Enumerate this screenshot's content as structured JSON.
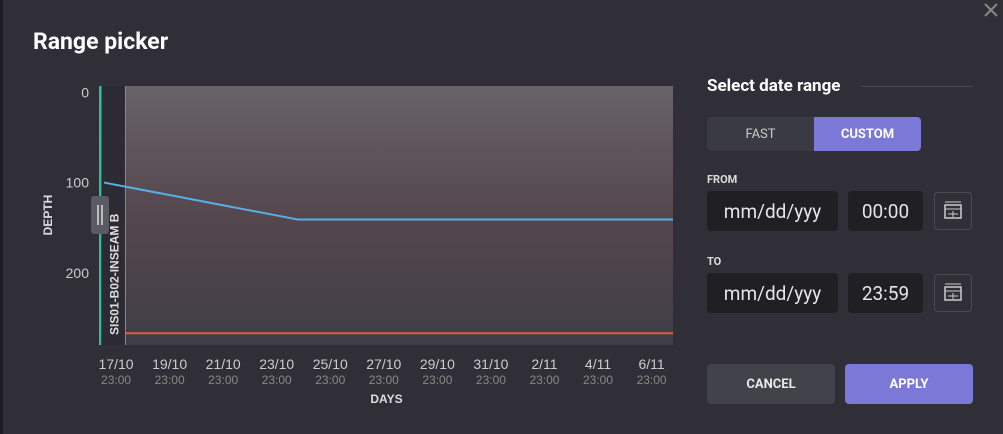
{
  "header": {
    "title": "Range picker"
  },
  "chart_data": {
    "type": "line",
    "y_label": "DEPTH",
    "x_label": "DAYS",
    "y_inverted": true,
    "ylim": [
      -7,
      280
    ],
    "yticks": [
      0,
      100,
      200
    ],
    "xlim": [
      -0.6,
      20.8
    ],
    "xticks": [
      {
        "value": 0,
        "label": "17/10",
        "sublabel": "23:00"
      },
      {
        "value": 2,
        "label": "19/10",
        "sublabel": "23:00"
      },
      {
        "value": 4,
        "label": "21/10",
        "sublabel": "23:00"
      },
      {
        "value": 6,
        "label": "23/10",
        "sublabel": "23:00"
      },
      {
        "value": 8,
        "label": "25/10",
        "sublabel": "23:00"
      },
      {
        "value": 10,
        "label": "27/10",
        "sublabel": "23:00"
      },
      {
        "value": 12,
        "label": "29/10",
        "sublabel": "23:00"
      },
      {
        "value": 14,
        "label": "31/10",
        "sublabel": "23:00"
      },
      {
        "value": 16,
        "label": "2/11",
        "sublabel": "23:00"
      },
      {
        "value": 18,
        "label": "4/11",
        "sublabel": "23:00"
      },
      {
        "value": 20,
        "label": "6/11",
        "sublabel": "23:00"
      }
    ],
    "series": [
      {
        "color": "#5aaee8",
        "x": [
          -0.45,
          6.8,
          20.8
        ],
        "values": [
          100,
          141,
          141
        ]
      },
      {
        "color": "#e0603e",
        "x": [
          0.35,
          20.8
        ],
        "values": [
          267,
          267
        ]
      }
    ],
    "markers": [
      {
        "label": "SIS01-B02-INSEAM B",
        "x": 0.35
      }
    ]
  },
  "panel": {
    "heading": "Select date range",
    "tabs": [
      "FAST",
      "CUSTOM"
    ],
    "active_tab": 1,
    "from": {
      "label": "FROM",
      "date": "mm/dd/yyy",
      "time": "00:00"
    },
    "to": {
      "label": "TO",
      "date": "mm/dd/yyy",
      "time": "23:59"
    },
    "buttons": [
      "CANCEL",
      "APPLY"
    ]
  }
}
